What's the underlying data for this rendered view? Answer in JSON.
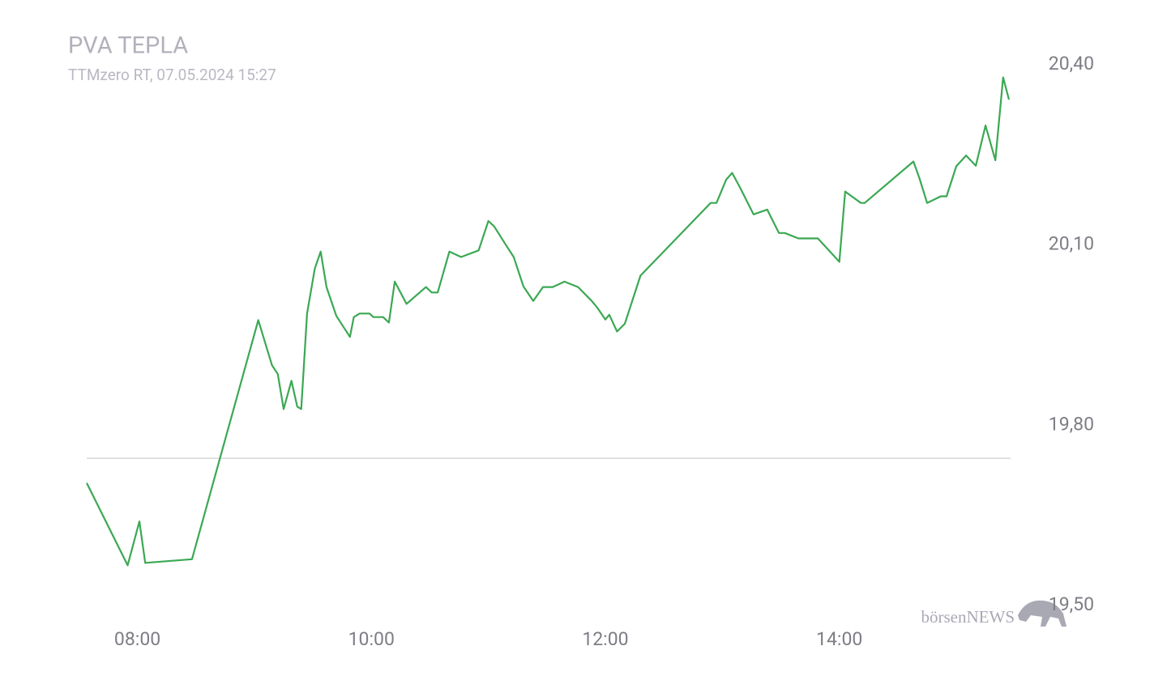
{
  "chart_data": {
    "type": "line",
    "title": "PVA TEPLA",
    "subtitle": "TTMzero RT, 07.05.2024 15:27",
    "watermark": "börsenNEWS",
    "color": "#3ba853",
    "x": [
      "07:34",
      "07:55",
      "08:01",
      "08:04",
      "08:28",
      "09:02",
      "09:09",
      "09:12",
      "09:15",
      "09:19",
      "09:22",
      "09:24",
      "09:27",
      "09:31",
      "09:34",
      "09:37",
      "09:42",
      "09:49",
      "09:51",
      "09:54",
      "09:59",
      "10:01",
      "10:06",
      "10:09",
      "10:12",
      "10:18",
      "10:28",
      "10:31",
      "10:34",
      "10:40",
      "10:46",
      "10:55",
      "11:00",
      "11:03",
      "11:09",
      "11:13",
      "11:18",
      "11:23",
      "11:28",
      "11:33",
      "11:39",
      "11:46",
      "11:53",
      "11:56",
      "12:00",
      "12:02",
      "12:06",
      "12:10",
      "12:18",
      "12:54",
      "12:57",
      "13:02",
      "13:05",
      "13:09",
      "13:16",
      "13:23",
      "13:29",
      "13:32",
      "13:39",
      "13:49",
      "14:00",
      "14:03",
      "14:11",
      "14:13",
      "14:38",
      "14:41",
      "14:45",
      "14:52",
      "14:55",
      "15:00",
      "15:05",
      "15:10",
      "15:15",
      "15:20",
      "15:24",
      "15:27"
    ],
    "values": [
      19.704,
      19.567,
      19.64,
      19.571,
      19.577,
      19.975,
      19.9,
      19.885,
      19.827,
      19.874,
      19.831,
      19.827,
      19.986,
      20.061,
      20.089,
      20.03,
      19.982,
      19.947,
      19.98,
      19.986,
      19.986,
      19.98,
      19.98,
      19.971,
      20.039,
      20.002,
      20.03,
      20.021,
      20.021,
      20.089,
      20.08,
      20.091,
      20.14,
      20.131,
      20.1,
      20.08,
      20.031,
      20.007,
      20.03,
      20.03,
      20.039,
      20.03,
      20.007,
      19.995,
      19.976,
      19.984,
      19.956,
      19.969,
      20.049,
      20.17,
      20.17,
      20.209,
      20.22,
      20.196,
      20.151,
      20.159,
      20.12,
      20.12,
      20.111,
      20.111,
      20.072,
      20.189,
      20.17,
      20.17,
      20.239,
      20.212,
      20.17,
      20.181,
      20.181,
      20.231,
      20.249,
      20.232,
      20.299,
      20.241,
      20.379,
      20.342
    ],
    "reference_line": 19.745,
    "xlim": [
      "07:34",
      "15:27"
    ],
    "xticks": [
      "08:00",
      "10:00",
      "12:00",
      "14:00"
    ],
    "ylim": [
      19.5,
      20.4
    ],
    "yticks": [
      {
        "value": 20.4,
        "label": "20,40"
      },
      {
        "value": 20.1,
        "label": "20,10"
      },
      {
        "value": 19.8,
        "label": "19,80"
      },
      {
        "value": 19.5,
        "label": "19,50"
      }
    ]
  }
}
